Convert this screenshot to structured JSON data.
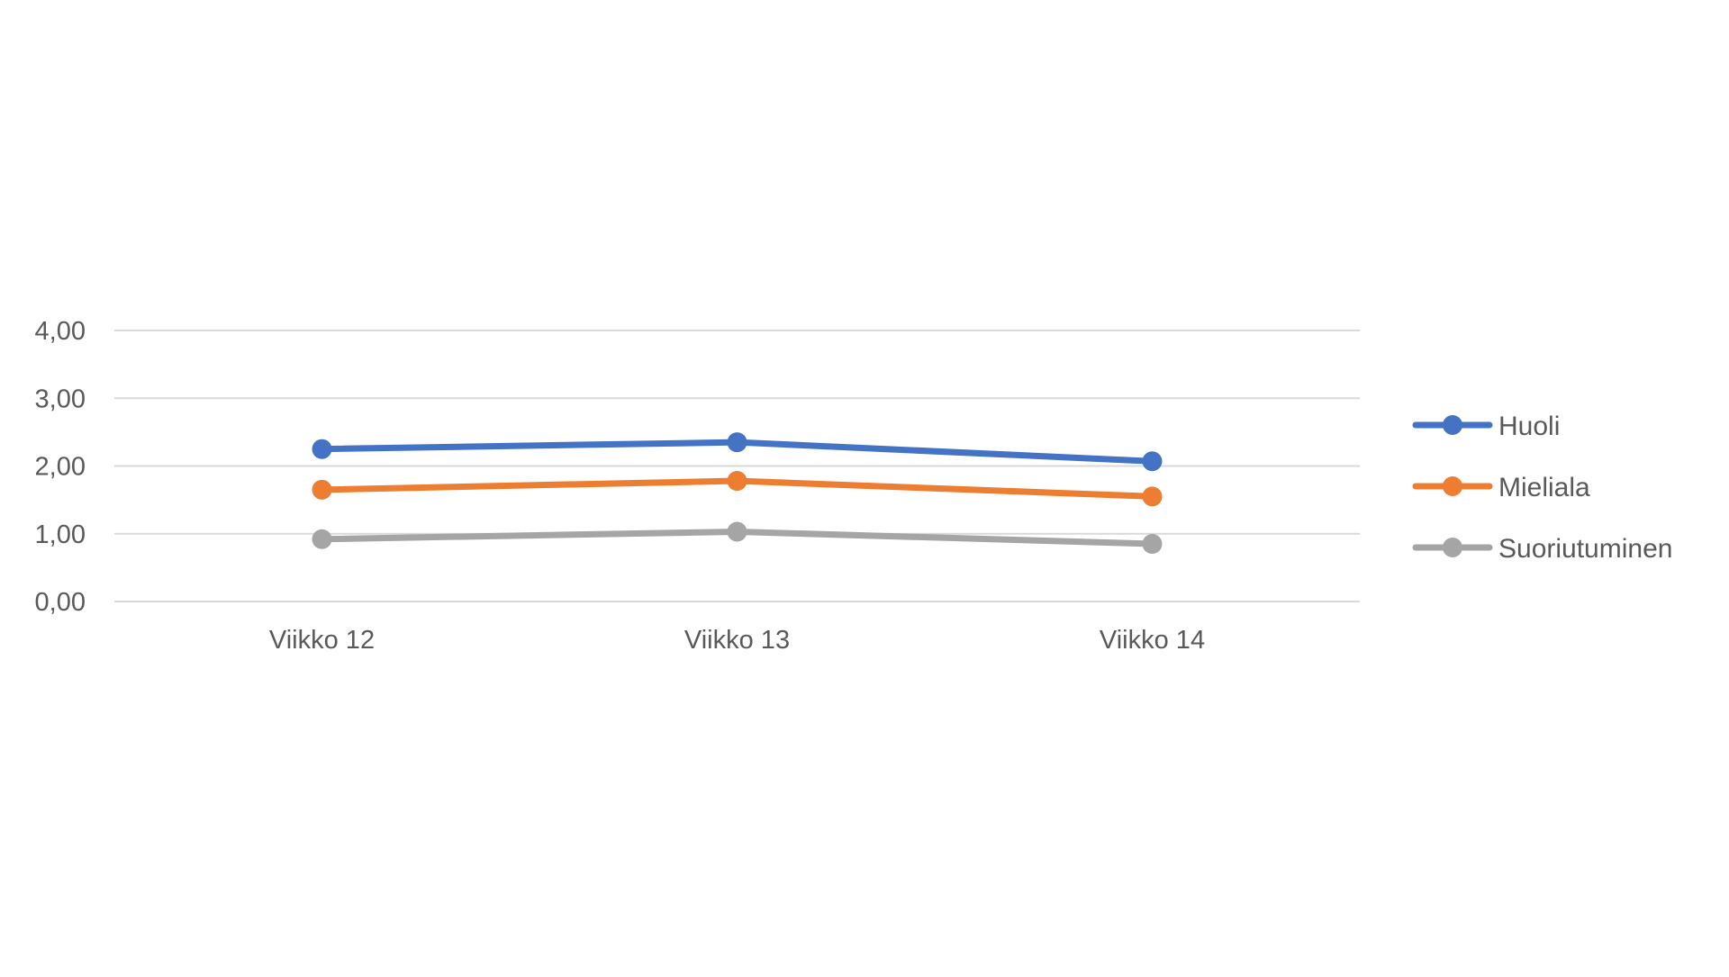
{
  "chart_data": {
    "type": "line",
    "title": "",
    "xlabel": "",
    "ylabel": "",
    "categories": [
      "Viikko 12",
      "Viikko 13",
      "Viikko 14"
    ],
    "y_ticks": [
      "0,00",
      "1,00",
      "2,00",
      "3,00",
      "4,00"
    ],
    "ylim": [
      0,
      4
    ],
    "grid": true,
    "legend_position": "right",
    "series": [
      {
        "name": "Huoli",
        "color": "#4472C4",
        "values": [
          2.25,
          2.35,
          2.07
        ]
      },
      {
        "name": "Mieliala",
        "color": "#ED7D31",
        "values": [
          1.65,
          1.78,
          1.55
        ]
      },
      {
        "name": "Suoriutuminen",
        "color": "#A5A5A5",
        "values": [
          0.92,
          1.03,
          0.85
        ]
      }
    ]
  }
}
